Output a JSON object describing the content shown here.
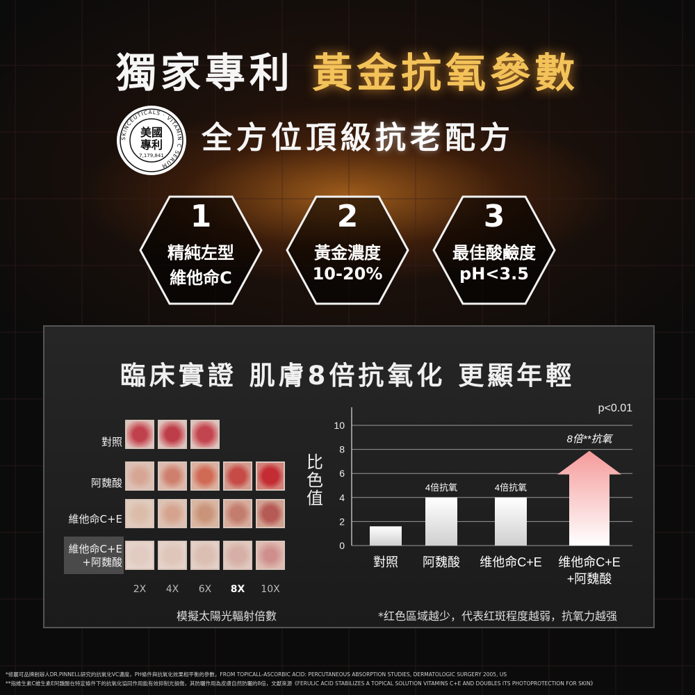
{
  "headline": {
    "white": "獨家專利",
    "gold": "黃金抗氧參數"
  },
  "seal": {
    "ring_text": "SKINCEUTICALS · VITAMIN C SERUM",
    "center_line1": "美國",
    "center_line2": "專利",
    "number": "7,179,841"
  },
  "subheadline": {
    "part1": "全方位頂級",
    "part2": "抗老",
    "part3": "配方"
  },
  "features": [
    {
      "number": "1",
      "line1": "精純左型",
      "line2": "維他命C"
    },
    {
      "number": "2",
      "line1": "黃金濃度",
      "line2": "10-20%"
    },
    {
      "number": "3",
      "line1": "最佳酸鹼度",
      "line2": "pH<3.5"
    }
  ],
  "panel": {
    "title": "臨床實證 肌膚8倍抗氧化 更顯年輕",
    "photo_grid": {
      "rows": [
        {
          "label": "對照",
          "count": 3
        },
        {
          "label": "阿魏酸",
          "count": 5
        },
        {
          "label": "維他命C+E",
          "count": 5
        },
        {
          "label_line1": "維他命C+E",
          "label_line2": "+阿魏酸",
          "count": 5
        }
      ],
      "x_labels": [
        "2X",
        "4X",
        "6X",
        "8X",
        "10X"
      ],
      "x_highlight": "8X",
      "caption": "模擬太陽光輻射倍數"
    },
    "significance": "p<0.01",
    "footnote_caption": "*红色區域越少，代表红斑程度越弱，抗氧力越强"
  },
  "chart_data": {
    "type": "bar",
    "categories": [
      "對照",
      "阿魏酸",
      "维他命C+E",
      "维他命C+E\n+阿魏酸"
    ],
    "category_line1": [
      "對照",
      "阿魏酸",
      "维他命C+E",
      "维他命C+E"
    ],
    "category_line2": [
      "",
      "",
      "",
      "+阿魏酸"
    ],
    "values": [
      1.6,
      4,
      4,
      8
    ],
    "ylabel": "比色值",
    "ylim": [
      0,
      10
    ],
    "yticks": [
      "0",
      "2",
      "4",
      "6",
      "8",
      "10"
    ],
    "data_labels": [
      "",
      "4倍抗氧",
      "4倍抗氧",
      "8倍**抗氧"
    ],
    "colors": {
      "bar": "#ffffff",
      "arrow": "#f7a0a0"
    }
  },
  "footnotes": [
    "*修麗可品牌創辦人DR.PINNELL研究的抗氧化VC濃度，PH條件與抗氧化效果相平衡的參數，FROM TOPICALL-ASCORBIC ACID: PERCUTANEOUS ABSORPTION STUDIES, DERMATOLOGIC SURGERY 2005, US",
    "**指維生素C維生素E阿魏酸在特定條件下的抗氧化協同作用能有效抑制光損傷，其防曬作用為皮膚自然防曬的8倍，文獻來源《FERULIC ACID STABILIZES A TOPICAL SOLUTION VITAMINS C+E AND DOUBLES ITS PHOTOPROTECTION FOR SKIN》"
  ]
}
